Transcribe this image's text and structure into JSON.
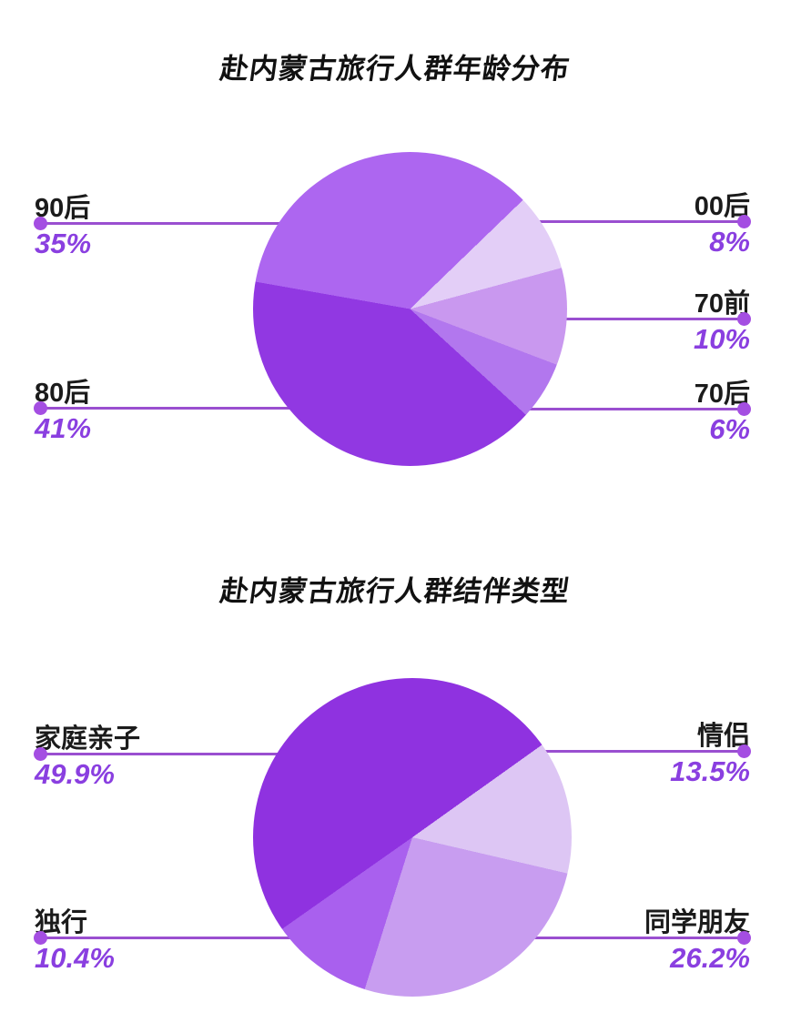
{
  "chart_data": [
    {
      "type": "pie",
      "title": "赴内蒙古旅行人群年龄分布",
      "start_angle_deg": 280,
      "direction": "clockwise",
      "legend_position": "outside-leader-lines",
      "slices": [
        {
          "label": "90后",
          "value": 35,
          "display": "35%",
          "color": "#ad66f0",
          "label_side": "left"
        },
        {
          "label": "00后",
          "value": 8,
          "display": "8%",
          "color": "#e3cef7",
          "label_side": "right"
        },
        {
          "label": "70前",
          "value": 10,
          "display": "10%",
          "color": "#c998ef",
          "label_side": "right"
        },
        {
          "label": "70后",
          "value": 6,
          "display": "6%",
          "color": "#b277ee",
          "label_side": "right"
        },
        {
          "label": "80后",
          "value": 41,
          "display": "41%",
          "color": "#9138e2",
          "label_side": "left"
        }
      ]
    },
    {
      "type": "pie",
      "title": "赴内蒙古旅行人群结伴类型",
      "start_angle_deg": 54.5,
      "direction": "clockwise",
      "legend_position": "outside-leader-lines",
      "slices": [
        {
          "label": "情侣",
          "value": 13.5,
          "display": "13.5%",
          "color": "#ddc6f4",
          "label_side": "right"
        },
        {
          "label": "同学朋友",
          "value": 26.2,
          "display": "26.2%",
          "color": "#c89df0",
          "label_side": "right"
        },
        {
          "label": "独行",
          "value": 10.4,
          "display": "10.4%",
          "color": "#a960ee",
          "label_side": "left"
        },
        {
          "label": "家庭亲子",
          "value": 49.9,
          "display": "49.9%",
          "color": "#8f32e0",
          "label_side": "left"
        }
      ]
    }
  ],
  "style_colors": {
    "background": "#ffffff",
    "leader_line": "#9a4fd0",
    "dot": "#a44ee2",
    "percent_text": "#8a3fe0",
    "label_text": "#1b1b1b"
  }
}
